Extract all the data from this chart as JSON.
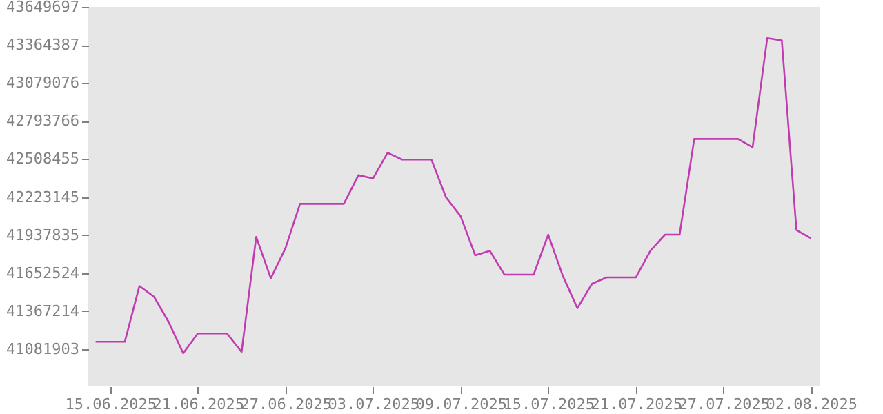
{
  "chart_data": {
    "type": "line",
    "x": [
      "2025-06-14",
      "2025-06-15",
      "2025-06-16",
      "2025-06-17",
      "2025-06-18",
      "2025-06-19",
      "2025-06-20",
      "2025-06-21",
      "2025-06-22",
      "2025-06-23",
      "2025-06-24",
      "2025-06-25",
      "2025-06-26",
      "2025-06-27",
      "2025-06-28",
      "2025-06-29",
      "2025-06-30",
      "2025-07-01",
      "2025-07-02",
      "2025-07-03",
      "2025-07-04",
      "2025-07-05",
      "2025-07-06",
      "2025-07-07",
      "2025-07-08",
      "2025-07-09",
      "2025-07-10",
      "2025-07-11",
      "2025-07-12",
      "2025-07-13",
      "2025-07-14",
      "2025-07-15",
      "2025-07-16",
      "2025-07-17",
      "2025-07-18",
      "2025-07-19",
      "2025-07-20",
      "2025-07-21",
      "2025-07-22",
      "2025-07-23",
      "2025-07-24",
      "2025-07-25",
      "2025-07-26",
      "2025-07-27",
      "2025-07-28",
      "2025-07-29",
      "2025-07-30",
      "2025-07-31",
      "2025-08-01",
      "2025-08-02"
    ],
    "series": [
      {
        "color": "#c03cb0",
        "values": [
          41137000,
          41137000,
          41137000,
          41555000,
          41475000,
          41286000,
          41051000,
          41199000,
          41199000,
          41199000,
          41061000,
          41924000,
          41613000,
          41838000,
          42172000,
          42172000,
          42172000,
          42172000,
          42387000,
          42363000,
          42555000,
          42504000,
          42504000,
          42504000,
          42221000,
          42079000,
          41786000,
          41820000,
          41641000,
          41641000,
          41641000,
          41941000,
          41631000,
          41389000,
          41572000,
          41620000,
          41620000,
          41620000,
          41820000,
          41941000,
          41941000,
          42659000,
          42659000,
          42659000,
          42659000,
          42597000,
          43415000,
          43398000,
          41975000,
          41913000
        ]
      }
    ],
    "xlim": [
      "2025-06-13T12:00",
      "2025-08-02T14:00"
    ],
    "xticks": [
      {
        "value": "2025-06-15",
        "label": "15.06.2025"
      },
      {
        "value": "2025-06-21",
        "label": "21.06.2025"
      },
      {
        "value": "2025-06-27",
        "label": "27.06.2025"
      },
      {
        "value": "2025-07-03",
        "label": "03.07.2025"
      },
      {
        "value": "2025-07-09",
        "label": "09.07.2025"
      },
      {
        "value": "2025-07-15",
        "label": "15.07.2025"
      },
      {
        "value": "2025-07-21",
        "label": "21.07.2025"
      },
      {
        "value": "2025-07-27",
        "label": "27.07.2025"
      },
      {
        "value": "2025-08-02",
        "label": "02.08.2025"
      }
    ],
    "ylim": [
      40802000,
      43649697
    ],
    "yticks": [
      41081903,
      41367214,
      41652524,
      41937835,
      42223145,
      42508455,
      42793766,
      43079076,
      43364387,
      43649697
    ],
    "grid": false
  }
}
